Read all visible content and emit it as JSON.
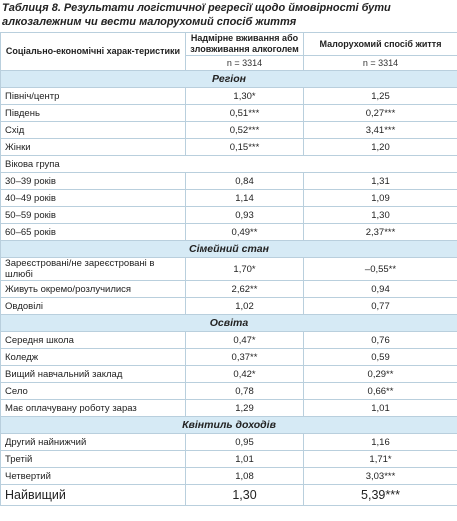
{
  "title": "Таблиця 8. Результати логістичної регресії щодо ймовірності бути алкозалежним чи вести малорухомий спосіб життя",
  "table": {
    "header": [
      "Соціально-економічні харак-теристики",
      "Надмірне вживання або зловживання алкоголем",
      "Малорухомий спосіб життя"
    ],
    "sample_sizes": [
      "n = 3314",
      "n = 3314"
    ],
    "sections": [
      {
        "name": "Регіон",
        "rows": [
          [
            "Північ/центр",
            "1,30*",
            "1,25"
          ],
          [
            "Південь",
            "0,51***",
            "0,27***"
          ],
          [
            "Схід",
            "0,52***",
            "3,41***"
          ],
          [
            "Жінки",
            "0,15***",
            "1,20"
          ],
          [
            "Вікова група"
          ],
          [
            "30–39 років",
            "0,84",
            "1,31"
          ],
          [
            "40–49 років",
            "1,14",
            "1,09"
          ],
          [
            "50–59 років",
            "0,93",
            "1,30"
          ],
          [
            "60–65 років",
            "0,49**",
            "2,37***"
          ]
        ]
      },
      {
        "name": "Сімейний стан",
        "rows": [
          [
            "Зареєстровані/не зареєстровані в шлюбі",
            "1,70*",
            "–0,55**"
          ],
          [
            "Живуть окремо/розлучилися",
            "2,62**",
            "0,94"
          ],
          [
            "Овдовілі",
            "1,02",
            "0,77"
          ]
        ]
      },
      {
        "name": "Освіта",
        "rows": [
          [
            "Середня школа",
            "0,47*",
            "0,76"
          ],
          [
            "Коледж",
            "0,37**",
            "0,59"
          ],
          [
            "Вищий навчальний заклад",
            "0,42*",
            "0,29**"
          ],
          [
            "Село",
            "0,78",
            "0,66**"
          ],
          [
            "Має оплачувану роботу зараз",
            "1,29",
            "1,01"
          ]
        ]
      },
      {
        "name": "Квінтиль доходів",
        "rows": [
          [
            "Другий найнижчий",
            "0,95",
            "1,16"
          ],
          [
            "Третій",
            "1,01",
            "1,71*"
          ],
          [
            "Четвертий",
            "1,08",
            "3,03***"
          ],
          [
            "Найвищий",
            "1,30",
            "5,39***"
          ]
        ]
      }
    ]
  }
}
